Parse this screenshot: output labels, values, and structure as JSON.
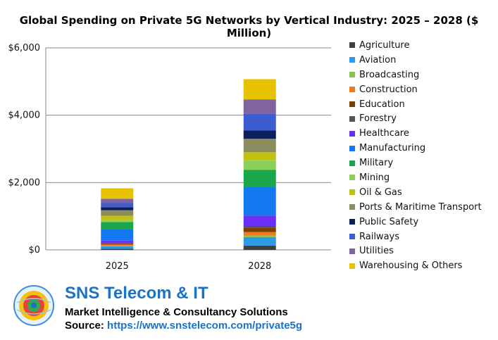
{
  "chart_data": {
    "type": "bar",
    "stacked": true,
    "title": "Global Spending on Private 5G Networks by Vertical Industry: 2025 – 2028 ($ Million)",
    "categories": [
      "2025",
      "2028"
    ],
    "ylim": [
      0,
      6000
    ],
    "yticks": [
      0,
      2000,
      4000,
      6000
    ],
    "ytick_labels": [
      "$0",
      "$2,000",
      "$4,000",
      "$6,000"
    ],
    "grid": true,
    "legend_position": "right",
    "series": [
      {
        "name": "Agriculture",
        "color": "#404040",
        "values": [
          35,
          130
        ]
      },
      {
        "name": "Aviation",
        "color": "#2e9be6",
        "values": [
          75,
          250
        ]
      },
      {
        "name": "Broadcasting",
        "color": "#8bc34a",
        "values": [
          15,
          50
        ]
      },
      {
        "name": "Construction",
        "color": "#f07a22",
        "values": [
          35,
          100
        ]
      },
      {
        "name": "Education",
        "color": "#7b3f00",
        "values": [
          30,
          120
        ]
      },
      {
        "name": "Forestry",
        "color": "#555555",
        "values": [
          15,
          40
        ]
      },
      {
        "name": "Healthcare",
        "color": "#6a2ff2",
        "values": [
          70,
          330
        ]
      },
      {
        "name": "Manufacturing",
        "color": "#1478f0",
        "values": [
          350,
          850
        ]
      },
      {
        "name": "Military",
        "color": "#1aa64a",
        "values": [
          200,
          510
        ]
      },
      {
        "name": "Mining",
        "color": "#8cd05a",
        "values": [
          60,
          290
        ]
      },
      {
        "name": "Oil & Gas",
        "color": "#c0c010",
        "values": [
          130,
          230
        ]
      },
      {
        "name": "Ports & Maritime Transport",
        "color": "#8c8c5c",
        "values": [
          165,
          400
        ]
      },
      {
        "name": "Public Safety",
        "color": "#0a1f5c",
        "values": [
          90,
          250
        ]
      },
      {
        "name": "Railways",
        "color": "#3d5ccf",
        "values": [
          120,
          500
        ]
      },
      {
        "name": "Utilities",
        "color": "#8064a2",
        "values": [
          130,
          420
        ]
      },
      {
        "name": "Warehousing & Others",
        "color": "#e6c200",
        "values": [
          310,
          600
        ]
      }
    ]
  },
  "branding": {
    "logo_icon": "globe-icon",
    "company": "SNS Telecom & IT",
    "tagline": "Market Intelligence & Consultancy Solutions",
    "source_label": "Source:",
    "source_url": "https://www.snstelecom.com/private5g"
  }
}
